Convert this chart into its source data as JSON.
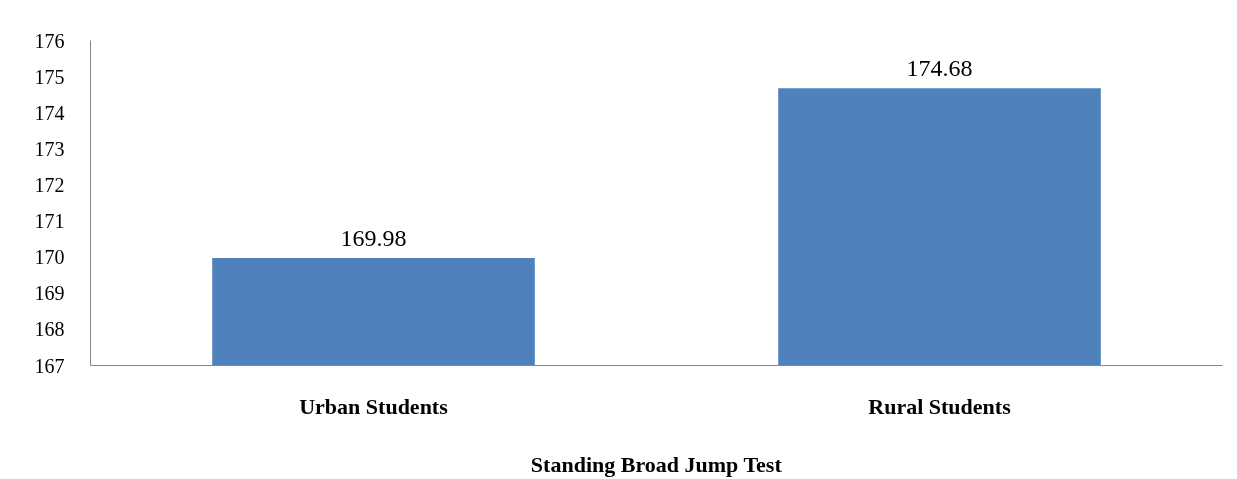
{
  "chart_data": {
    "type": "bar",
    "xlabel": "Standing Broad Jump Test",
    "categories": [
      "Urban Students",
      "Rural Students"
    ],
    "values": [
      169.98,
      174.68
    ],
    "color": "#4f81bd",
    "ylim": [
      167,
      176
    ],
    "yticks": [
      167,
      168,
      169,
      170,
      171,
      172,
      173,
      174,
      175,
      176
    ],
    "data_labels": true,
    "grid": false
  }
}
